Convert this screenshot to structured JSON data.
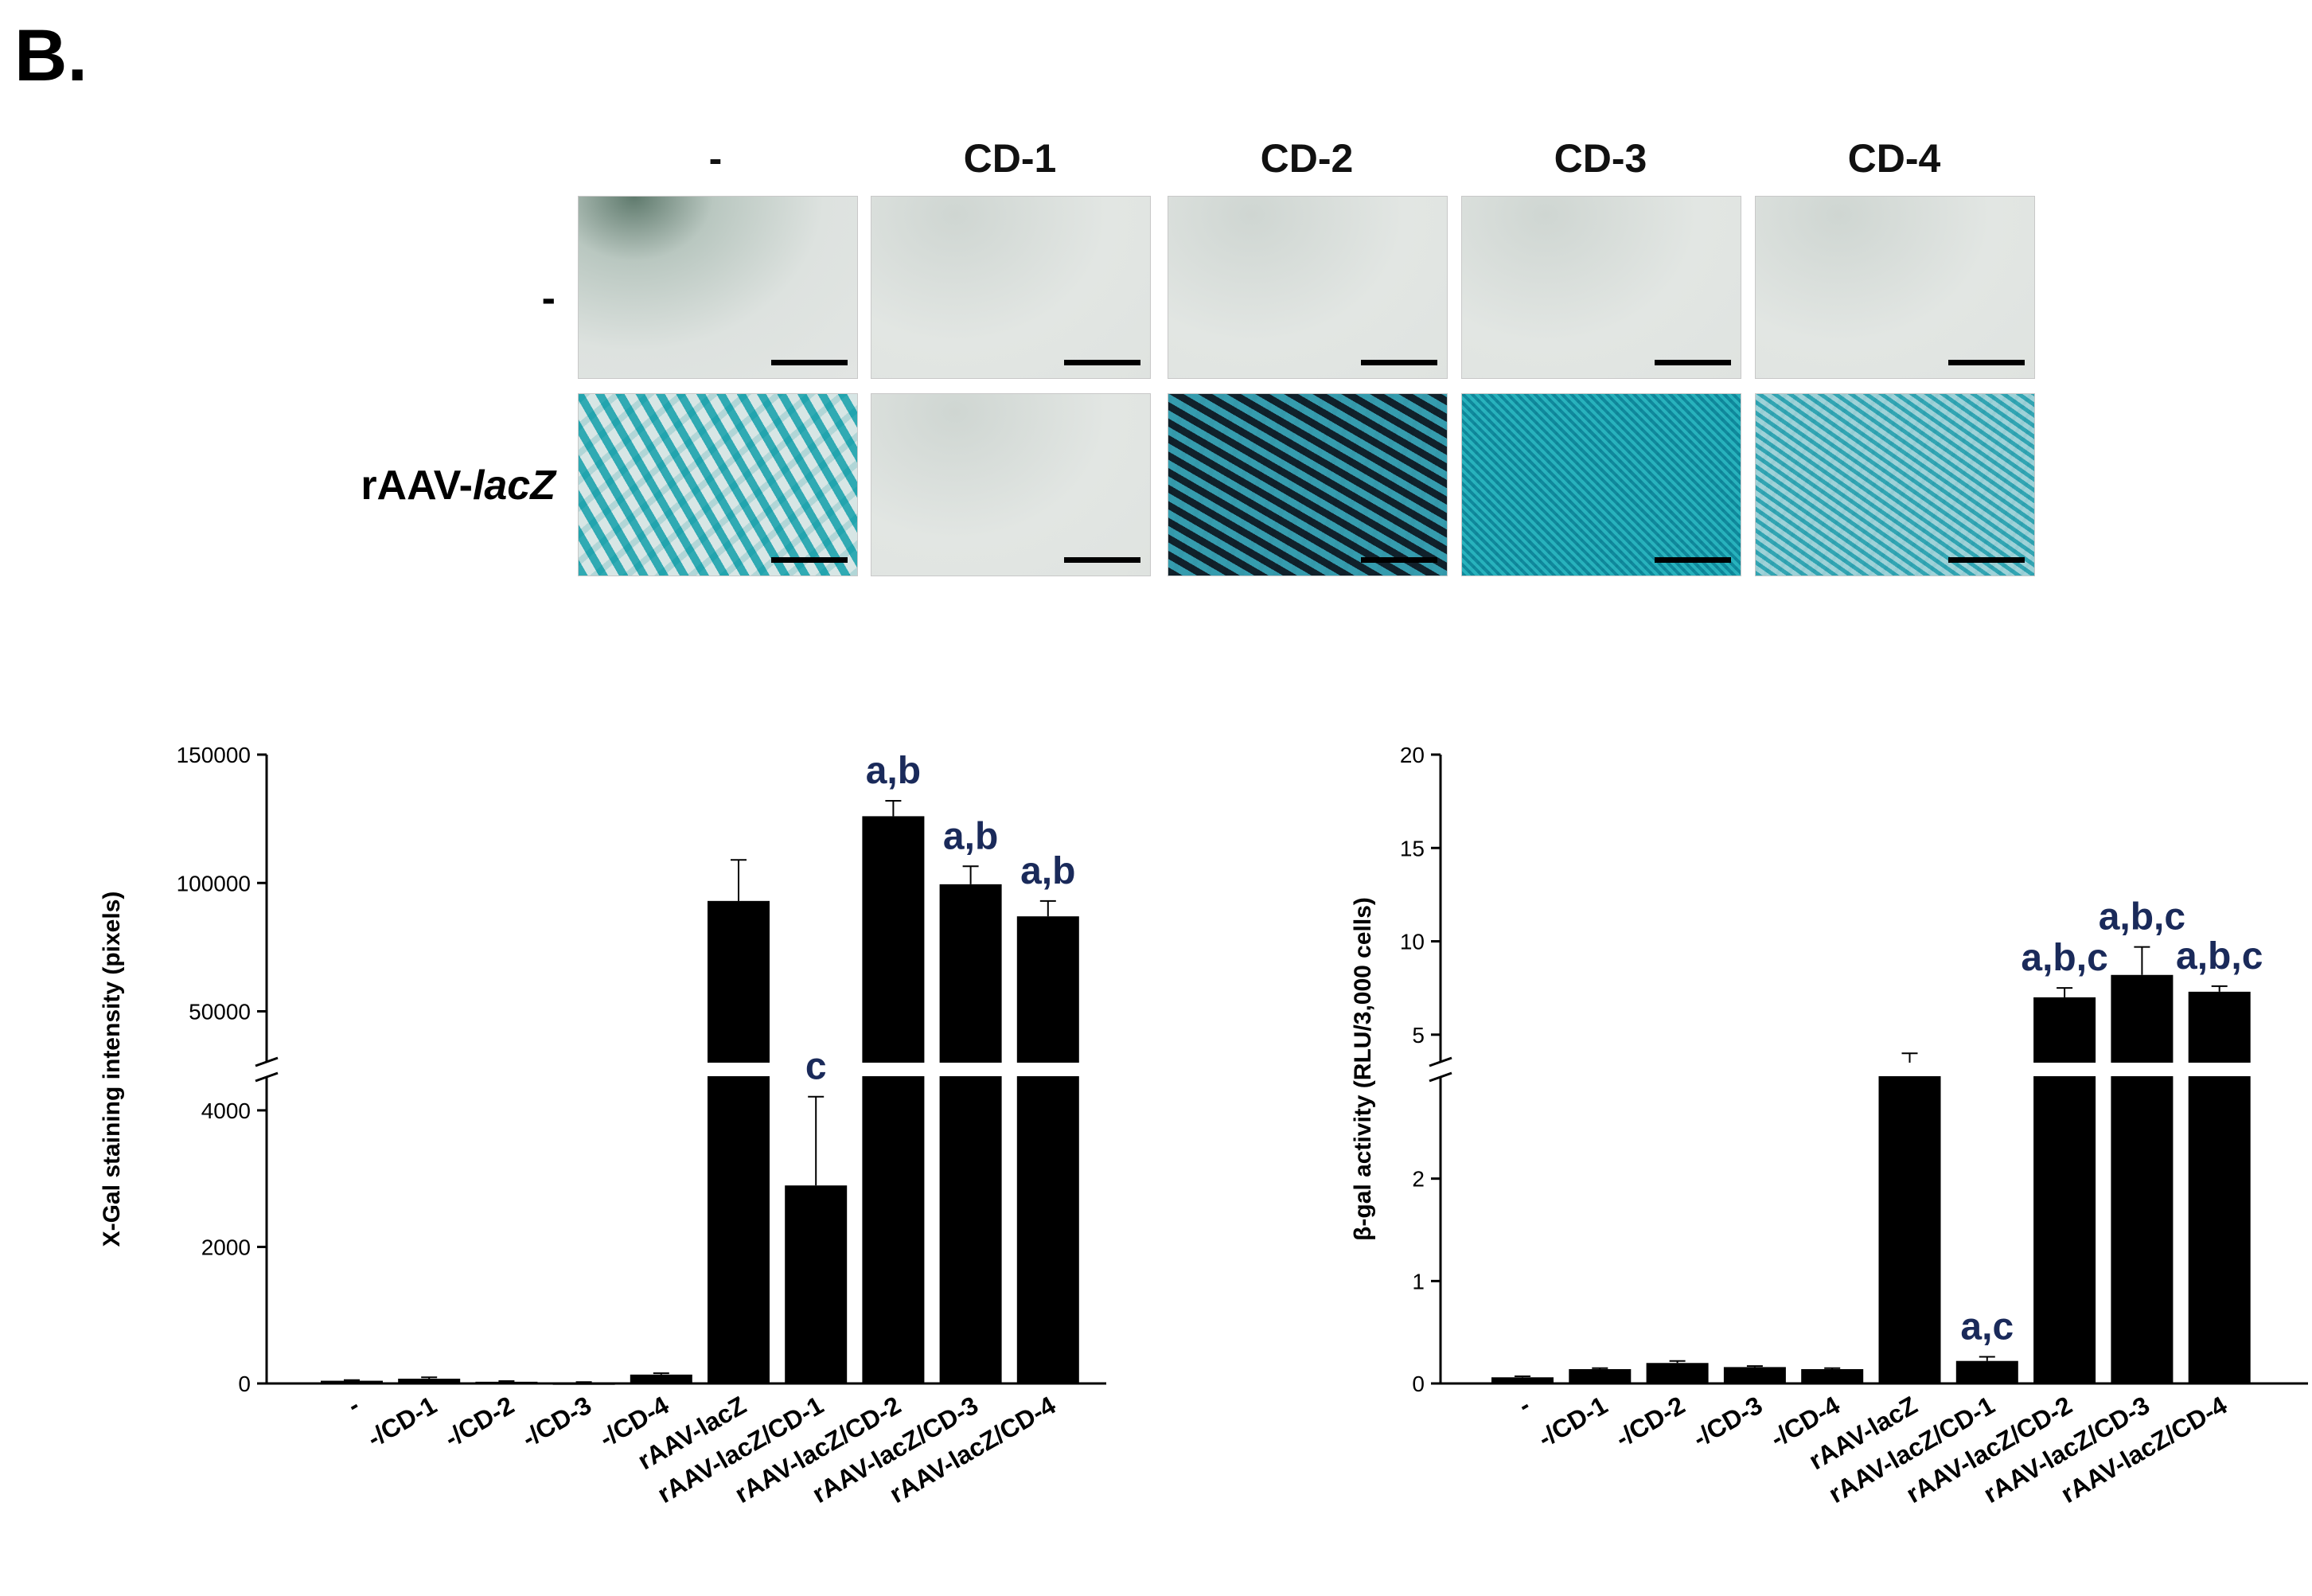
{
  "panel_label": "B.",
  "images": {
    "column_labels": [
      "-",
      "CD-1",
      "CD-2",
      "CD-3",
      "CD-4"
    ],
    "row_labels": [
      "-",
      "rAAV-lacZ"
    ],
    "row_label_lacz_prefix": "rAAV-",
    "row_label_lacz_italic": "lacZ"
  },
  "chart_data": [
    {
      "type": "bar",
      "categories": [
        "-",
        "-/CD-1",
        "-/CD-2",
        "-/CD-3",
        "-/CD-4",
        "rAAV-lacZ",
        "rAAV-lacZ/CD-1",
        "rAAV-lacZ/CD-2",
        "rAAV-lacZ/CD-3",
        "rAAV-lacZ/CD-4"
      ],
      "values": [
        40,
        70,
        25,
        15,
        130,
        93000,
        2900,
        126000,
        99500,
        87000
      ],
      "errors": [
        10,
        20,
        10,
        5,
        20,
        16000,
        1300,
        6000,
        7000,
        6000
      ],
      "annotations": [
        "",
        "",
        "",
        "",
        "",
        "",
        "c",
        "a,b",
        "a,b",
        "a,b"
      ],
      "ylabel": "X-Gal staining intensity (pixels)",
      "axis_break": true,
      "lower_segment": {
        "ylim": [
          0,
          4500
        ],
        "ticks": [
          0,
          2000,
          4000
        ]
      },
      "upper_segment": {
        "ylim": [
          30000,
          150000
        ],
        "ticks": [
          50000,
          100000,
          150000
        ]
      },
      "color": "#000000",
      "grid": false
    },
    {
      "type": "bar",
      "categories": [
        "-",
        "-/CD-1",
        "-/CD-2",
        "-/CD-3",
        "-/CD-4",
        "rAAV-lacZ",
        "rAAV-lacZ/CD-1",
        "rAAV-lacZ/CD-2",
        "rAAV-lacZ/CD-3",
        "rAAV-lacZ/CD-4"
      ],
      "values": [
        0.06,
        0.14,
        0.2,
        0.16,
        0.14,
        3.3,
        0.22,
        7.0,
        8.2,
        7.3
      ],
      "errors": [
        0.01,
        0.01,
        0.02,
        0.01,
        0.01,
        0.7,
        0.04,
        0.5,
        1.5,
        0.3
      ],
      "annotations": [
        "",
        "",
        "",
        "",
        "",
        "",
        "a,c",
        "a,b,c",
        "a,b,c",
        "a,b,c"
      ],
      "ylabel": "β-gal activity (RLU/3,000 cells)",
      "axis_break": true,
      "lower_segment": {
        "ylim": [
          0,
          3
        ],
        "ticks": [
          0,
          1,
          2
        ]
      },
      "upper_segment": {
        "ylim": [
          3.5,
          20
        ],
        "ticks": [
          5,
          10,
          15,
          20
        ]
      },
      "color": "#000000",
      "grid": false
    }
  ]
}
